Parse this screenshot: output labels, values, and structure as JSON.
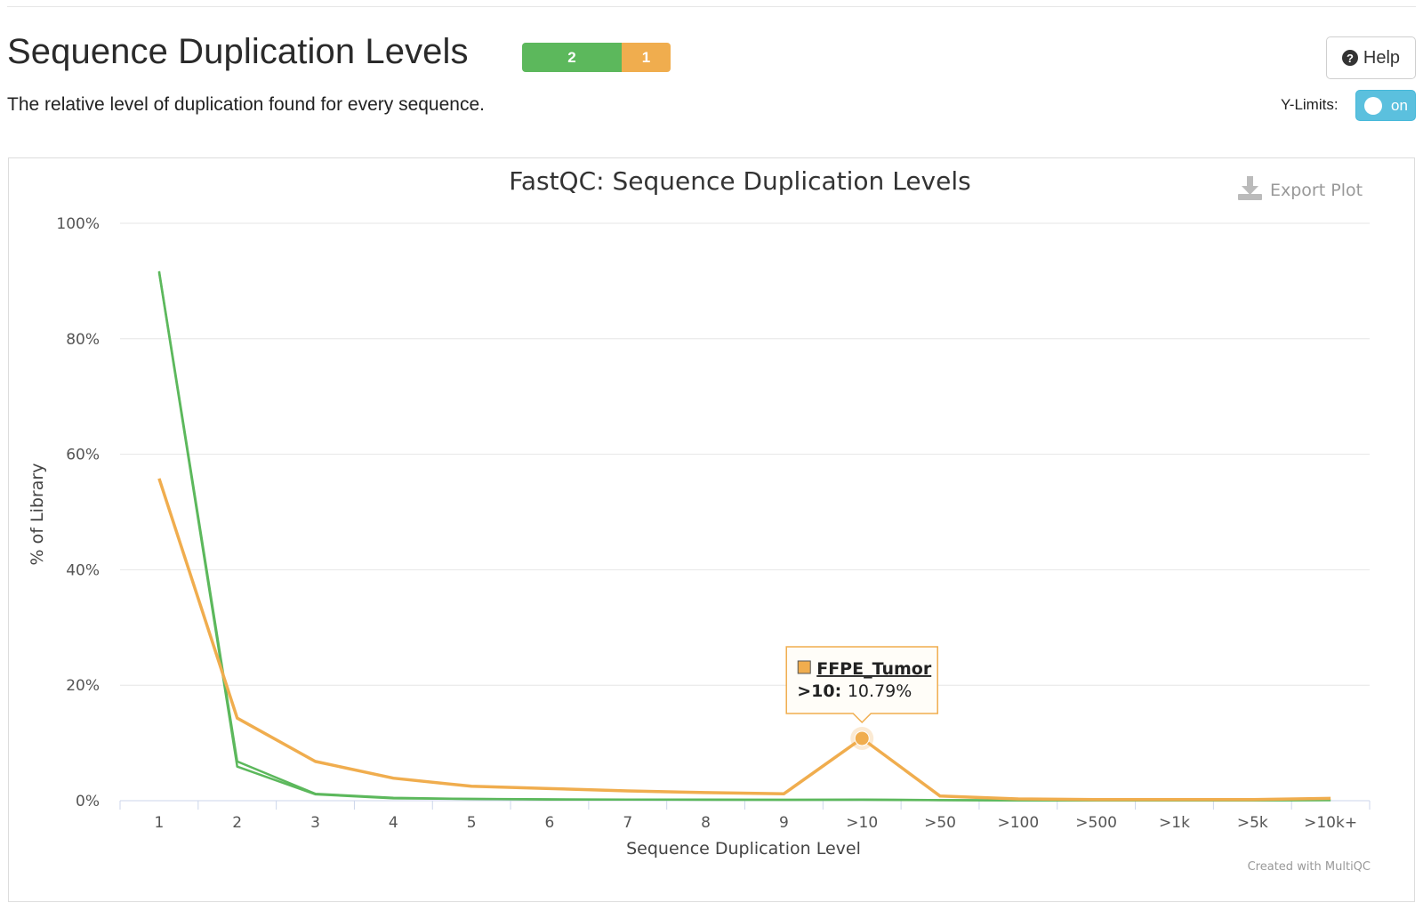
{
  "header": {
    "title": "Sequence Duplication Levels",
    "description": "The relative level of duplication found for every sequence.",
    "status": {
      "pass": "2",
      "warn": "1",
      "pass_color": "#5cb85c",
      "warn_color": "#f0ad4e"
    },
    "help_label": "Help",
    "help_icon": "question-circle-icon",
    "ylimits_label": "Y-Limits:",
    "ylimits_toggle": "on"
  },
  "export_label": "Export Plot",
  "export_icon": "download-icon",
  "credit": "Created with MultiQC",
  "chart_data": {
    "type": "line",
    "title": "FastQC: Sequence Duplication Levels",
    "xlabel": "Sequence Duplication Level",
    "ylabel": "% of Library",
    "categories": [
      "1",
      "2",
      "3",
      "4",
      "5",
      "6",
      "7",
      "8",
      "9",
      ">10",
      ">50",
      ">100",
      ">500",
      ">1k",
      ">5k",
      ">10k+"
    ],
    "ylim": [
      0,
      100
    ],
    "y_ticks": [
      0,
      20,
      40,
      60,
      80,
      100
    ],
    "y_tick_labels": [
      "0%",
      "20%",
      "40%",
      "60%",
      "80%",
      "100%"
    ],
    "grid": true,
    "series": [
      {
        "color": "#5cb85c",
        "values": [
          91.7,
          6.8,
          1.2,
          0.5,
          0.3,
          0.25,
          0.2,
          0.2,
          0.15,
          0.2,
          0.1,
          0.05,
          0.05,
          0.05,
          0.05,
          0.1
        ]
      },
      {
        "color": "#5cb85c",
        "values": [
          91.5,
          5.9,
          1.1,
          0.4,
          0.3,
          0.2,
          0.2,
          0.15,
          0.15,
          0.15,
          0.1,
          0.05,
          0.05,
          0.05,
          0.05,
          0.1
        ]
      },
      {
        "color": "#f0ad4e",
        "values": [
          55.8,
          14.3,
          6.8,
          3.9,
          2.5,
          2.1,
          1.7,
          1.4,
          1.2,
          10.79,
          0.8,
          0.3,
          0.2,
          0.2,
          0.2,
          0.4
        ]
      }
    ],
    "tooltip": {
      "series_name": "FFPE_Tumor",
      "category": ">10",
      "value_text": "10.79%",
      "series_index": 2
    }
  }
}
